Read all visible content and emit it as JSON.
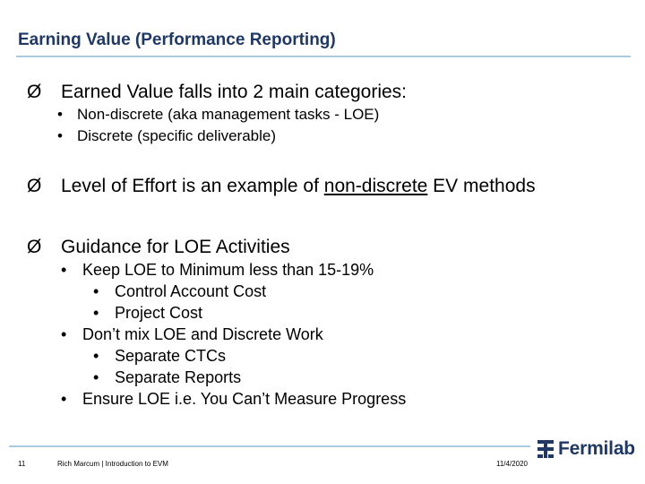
{
  "slide": {
    "title": "Earning Value (Performance Reporting)",
    "bullet_marker": "Ø",
    "sub_marker": "•",
    "sections": [
      {
        "text": "Earned Value falls into 2 main categories:",
        "items": [
          "Non-discrete (aka management tasks - LOE)",
          "Discrete (specific deliverable)"
        ]
      },
      {
        "text_before": "Level of Effort is an example of ",
        "text_underlined": "non-discrete",
        "text_after": " EV methods"
      },
      {
        "text": "Guidance for LOE Activities",
        "items": [
          {
            "text": "Keep LOE to Minimum less than 15-19%",
            "subitems": [
              "Control Account Cost",
              "Project Cost"
            ]
          },
          {
            "text": "Don’t mix LOE and Discrete Work",
            "subitems": [
              "Separate CTCs",
              "Separate Reports"
            ]
          },
          {
            "text": "Ensure LOE i.e. You Can’t Measure Progress"
          }
        ]
      }
    ]
  },
  "footer": {
    "page_number": "11",
    "presenter": "Rich Marcum | Introduction to EVM",
    "date": "11/4/2020",
    "logo_text": "Fermilab",
    "logo_icon": "fermilab-logo-icon"
  },
  "colors": {
    "title": "#1f3864",
    "rule": "#a9cbe0",
    "logo": "#1f3864"
  }
}
